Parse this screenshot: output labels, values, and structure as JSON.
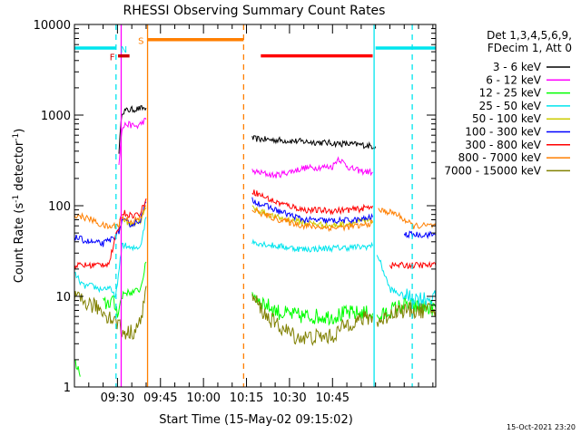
{
  "chart_data": {
    "type": "line",
    "title": "RHESSI Observing Summary Count Rates",
    "xlabel": "Start Time (15-May-02 09:15:02)",
    "ylabel": "Count Rate (s",
    "ylabel_sup1": "-1",
    "ylabel_mid": " detector",
    "ylabel_sup2": "-1",
    "ylabel_end": ")",
    "y_scale": "log",
    "ylim": [
      1,
      10000
    ],
    "xlim": [
      0,
      126
    ],
    "x_ticks": [
      {
        "x": 15,
        "label": "09:30"
      },
      {
        "x": 30,
        "label": "09:45"
      },
      {
        "x": 45,
        "label": "10:00"
      },
      {
        "x": 60,
        "label": "10:15"
      },
      {
        "x": 75,
        "label": "10:30"
      },
      {
        "x": 90,
        "label": "10:45"
      }
    ],
    "y_ticks": [
      {
        "y": 1,
        "label": "1"
      },
      {
        "y": 10,
        "label": "10"
      },
      {
        "y": 100,
        "label": "100"
      },
      {
        "y": 1000,
        "label": "1000"
      },
      {
        "y": 10000,
        "label": "10000"
      }
    ],
    "legend": {
      "header1": "Det 1,3,4,5,6,9,",
      "header2": "FDecim 1, Att 0",
      "placement": "right"
    },
    "flags": [
      {
        "label": "F",
        "color": "#cc0000",
        "y": 4500,
        "x_start": 15.2,
        "x_end": 19.2,
        "label_x": 13.2
      },
      {
        "label": "N",
        "color": "#00e5ee",
        "y": 5500,
        "x_start": 0,
        "x_end": 14.5,
        "label_x": 17.2
      },
      {
        "label": "N",
        "color": "#00e5ee",
        "y": 5500,
        "x_start": 105,
        "x_end": 126,
        "label_x": null
      },
      {
        "label": "S",
        "color": "#ff7f00",
        "y": 6800,
        "x_start": 25.5,
        "x_end": 59,
        "label_x": 23.2
      },
      {
        "label": "",
        "color": "#ff0000",
        "y": 4500,
        "x_start": 65,
        "x_end": 104,
        "label_x": null
      }
    ],
    "vlines": [
      {
        "x": 14.5,
        "color": "#00e5ee",
        "dashed": true
      },
      {
        "x": 16.3,
        "color": "#ff00ff",
        "dashed": false
      },
      {
        "x": 25.5,
        "color": "#ff7f00",
        "dashed": false
      },
      {
        "x": 59,
        "color": "#ff7f00",
        "dashed": true
      },
      {
        "x": 104.5,
        "color": "#00e5ee",
        "dashed": false
      },
      {
        "x": 117.8,
        "color": "#00e5ee",
        "dashed": true
      }
    ],
    "series": [
      {
        "name": "3 - 6 keV",
        "color": "#000000",
        "segments": [
          [
            [
              15.5,
              400
            ],
            [
              16.6,
              1100
            ],
            [
              20,
              1150
            ],
            [
              25,
              1200
            ]
          ],
          [
            [
              62,
              550
            ],
            [
              75,
              520
            ],
            [
              85,
              500
            ],
            [
              100,
              470
            ],
            [
              105,
              450
            ]
          ]
        ]
      },
      {
        "name": "6 - 12 keV",
        "color": "#ff00ff",
        "segments": [
          [
            [
              15.5,
              300
            ],
            [
              16.6,
              700
            ],
            [
              18,
              800
            ],
            [
              20,
              770
            ],
            [
              22,
              750
            ],
            [
              25,
              900
            ]
          ],
          [
            [
              62,
              240
            ],
            [
              70,
              215
            ],
            [
              80,
              260
            ],
            [
              90,
              270
            ],
            [
              92,
              335
            ],
            [
              96,
              260
            ],
            [
              100,
              240
            ],
            [
              104,
              235
            ]
          ]
        ]
      },
      {
        "name": "12 - 25 keV",
        "color": "#00ff00",
        "segments": [
          [
            [
              0,
              1.8
            ],
            [
              1,
              1.6
            ],
            [
              2,
              1.3
            ]
          ],
          [
            [
              10,
              8
            ],
            [
              13,
              9
            ],
            [
              15,
              7
            ],
            [
              16.4,
              9
            ],
            [
              17,
              11
            ],
            [
              20,
              11
            ],
            [
              23,
              12
            ],
            [
              25,
              24
            ]
          ],
          [
            [
              62,
              10.5
            ],
            [
              67,
              8
            ],
            [
              72,
              6.5
            ],
            [
              80,
              6
            ],
            [
              90,
              6
            ],
            [
              95,
              6.5
            ],
            [
              100,
              6.5
            ],
            [
              104,
              6.5
            ]
          ],
          [
            [
              105.5,
              5.5
            ],
            [
              110,
              7
            ],
            [
              115,
              8
            ],
            [
              121,
              7.5
            ],
            [
              126,
              7.5
            ]
          ]
        ]
      },
      {
        "name": "25 - 50 keV",
        "color": "#00e5ee",
        "segments": [
          [
            [
              0,
              18
            ],
            [
              3,
              13
            ],
            [
              6,
              13
            ],
            [
              9,
              12
            ],
            [
              12,
              12.5
            ],
            [
              14,
              10
            ],
            [
              15,
              13
            ],
            [
              16.6,
              38
            ],
            [
              20,
              33
            ],
            [
              23,
              36
            ],
            [
              25,
              75
            ]
          ],
          [
            [
              62,
              40
            ],
            [
              70,
              36
            ],
            [
              80,
              33
            ],
            [
              90,
              34
            ],
            [
              100,
              35
            ],
            [
              104,
              36
            ]
          ],
          [
            [
              105.5,
              30
            ],
            [
              110,
              12
            ],
            [
              115,
              10
            ],
            [
              121,
              9.5
            ],
            [
              126,
              9.5
            ]
          ]
        ]
      },
      {
        "name": "50 - 100 keV",
        "color": "#cccc00",
        "segments": [
          [
            [
              15.5,
              50
            ],
            [
              16.6,
              72
            ],
            [
              20,
              62
            ],
            [
              23,
              68
            ],
            [
              25,
              95
            ]
          ],
          [
            [
              62,
              95
            ],
            [
              70,
              75
            ],
            [
              80,
              65
            ],
            [
              90,
              60
            ],
            [
              100,
              67
            ],
            [
              104,
              68
            ]
          ]
        ]
      },
      {
        "name": "100 - 300 keV",
        "color": "#0000ff",
        "segments": [
          [
            [
              0,
              45
            ],
            [
              5,
              40
            ],
            [
              10,
              38
            ],
            [
              14,
              45
            ],
            [
              15.5,
              52
            ],
            [
              16.6,
              68
            ],
            [
              20,
              62
            ],
            [
              23,
              70
            ],
            [
              25,
              110
            ]
          ],
          [
            [
              62,
              115
            ],
            [
              70,
              90
            ],
            [
              80,
              70
            ],
            [
              90,
              68
            ],
            [
              100,
              70
            ],
            [
              104,
              75
            ]
          ],
          [
            [
              115,
              48
            ],
            [
              126,
              48
            ]
          ]
        ]
      },
      {
        "name": "300 - 800 keV",
        "color": "#ff0000",
        "segments": [
          [
            [
              0,
              22
            ],
            [
              6,
              22
            ],
            [
              12,
              23
            ],
            [
              15.5,
              60
            ],
            [
              16.6,
              85
            ],
            [
              20,
              78
            ],
            [
              23,
              82
            ],
            [
              25,
              120
            ]
          ],
          [
            [
              62,
              145
            ],
            [
              70,
              110
            ],
            [
              80,
              90
            ],
            [
              90,
              88
            ],
            [
              100,
              92
            ],
            [
              104,
              100
            ]
          ],
          [
            [
              110,
              22
            ],
            [
              126,
              22
            ]
          ]
        ]
      },
      {
        "name": "800 - 7000 keV",
        "color": "#ff7f00",
        "segments": [
          [
            [
              0,
              80
            ],
            [
              3,
              75
            ],
            [
              6,
              70
            ],
            [
              9,
              62
            ],
            [
              12,
              58
            ],
            [
              15.5,
              62
            ],
            [
              16.6,
              74
            ],
            [
              20,
              67
            ],
            [
              23,
              72
            ],
            [
              25,
              100
            ]
          ],
          [
            [
              62,
              90
            ],
            [
              70,
              72
            ],
            [
              80,
              60
            ],
            [
              90,
              57
            ],
            [
              100,
              60
            ],
            [
              104,
              65
            ]
          ],
          [
            [
              106,
              90
            ],
            [
              112,
              82
            ],
            [
              118,
              60
            ],
            [
              126,
              60
            ]
          ]
        ]
      },
      {
        "name": "7000 - 15000 keV",
        "color": "#808000",
        "segments": [
          [
            [
              0,
              9.5
            ],
            [
              4,
              8.5
            ],
            [
              8,
              7.5
            ],
            [
              12,
              6
            ],
            [
              15.5,
              5
            ],
            [
              16.6,
              4
            ],
            [
              20,
              4
            ],
            [
              23,
              5
            ],
            [
              25,
              13
            ]
          ],
          [
            [
              62,
              10
            ],
            [
              67,
              6
            ],
            [
              72,
              4.5
            ],
            [
              78,
              3.5
            ],
            [
              90,
              3.6
            ],
            [
              95,
              5
            ],
            [
              100,
              5.5
            ],
            [
              104,
              6
            ]
          ],
          [
            [
              105.5,
              5
            ],
            [
              112,
              7
            ],
            [
              118,
              7
            ],
            [
              126,
              7
            ]
          ]
        ]
      }
    ]
  },
  "timestamp": "15-Oct-2021 23:20"
}
